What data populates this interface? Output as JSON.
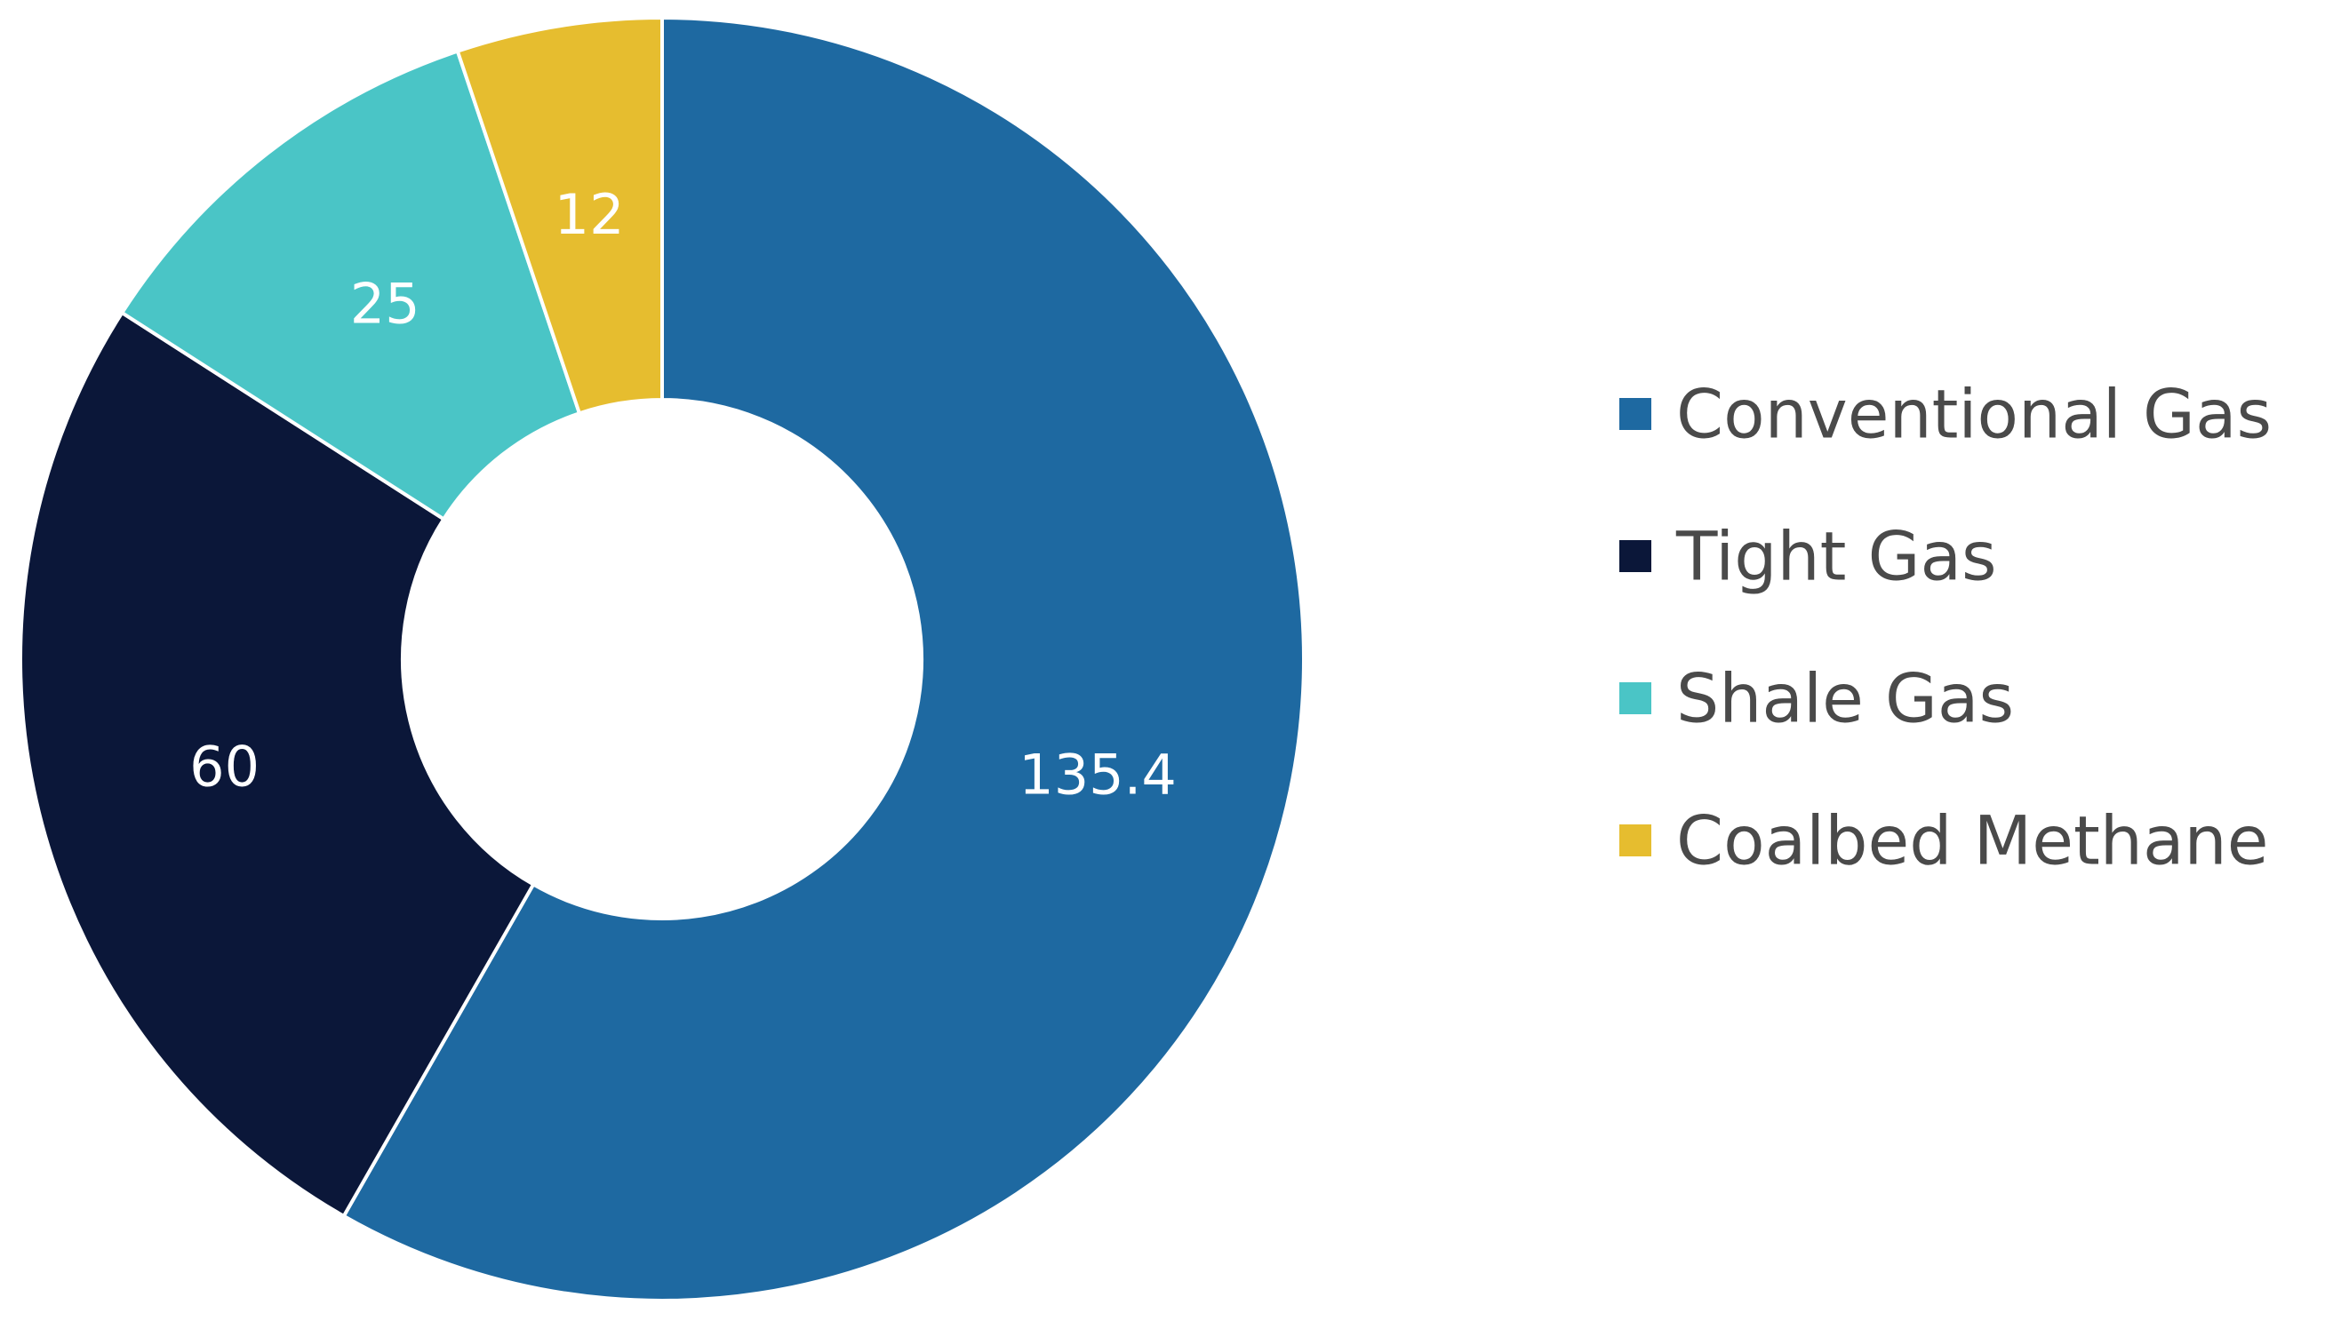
{
  "chart_data": {
    "type": "pie",
    "donut": true,
    "title": "",
    "legend_position": "right",
    "categories": [
      "Conventional Gas",
      "Tight Gas",
      "Shale Gas",
      "Coalbed Methane"
    ],
    "values": [
      135.4,
      60,
      25,
      12
    ],
    "value_labels": [
      "135.4",
      "60",
      "25",
      "12"
    ],
    "colors": [
      "#1e69a1",
      "#0b1739",
      "#4ac5c6",
      "#e6bd2f"
    ],
    "start_position": "top",
    "direction": "clockwise"
  }
}
